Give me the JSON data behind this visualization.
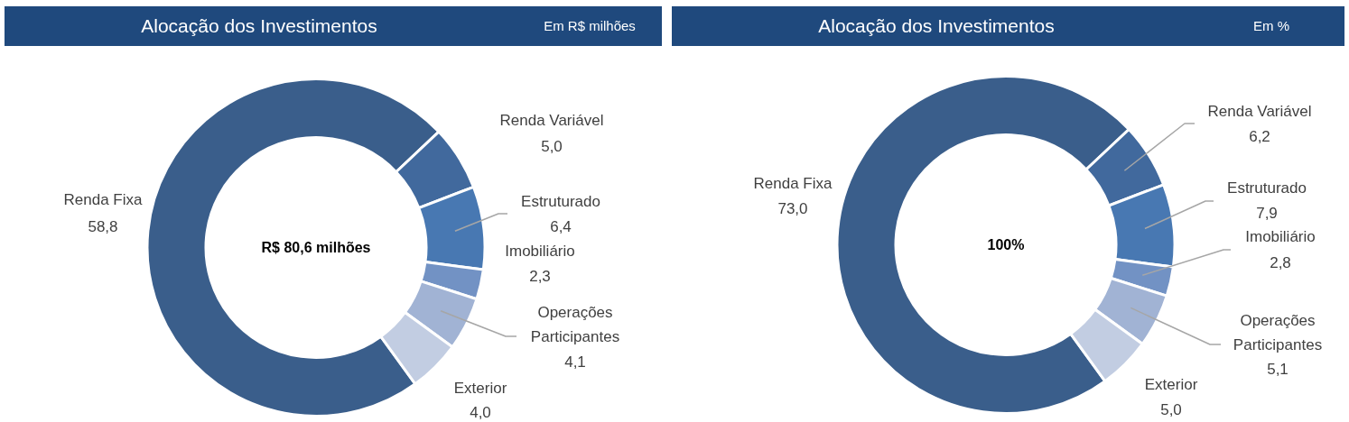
{
  "chart_data": [
    {
      "type": "donut",
      "title": "Alocação dos Investimentos",
      "subtitle": "Em R$ milhões",
      "categories": [
        "Renda Fixa",
        "Renda Variável",
        "Estruturado",
        "Imobiliário",
        "Operações Participantes",
        "Exterior"
      ],
      "values": [
        58.8,
        5.0,
        6.4,
        2.3,
        4.1,
        4.0
      ],
      "colors": [
        "#3a5e8b",
        "#41699d",
        "#4878b2",
        "#7292c4",
        "#a1b3d4",
        "#c2cde2"
      ],
      "value_labels": [
        "58,8",
        "5,0",
        "6,4",
        "2,3",
        "4,1",
        "4,0"
      ],
      "annotations": [
        "R$ 80,6 milhões"
      ]
    },
    {
      "type": "donut",
      "title": "Alocação dos Investimentos",
      "subtitle": "Em %",
      "categories": [
        "Renda Fixa",
        "Renda Variável",
        "Estruturado",
        "Imobiliário",
        "Operações Participantes",
        "Exterior"
      ],
      "values": [
        73.0,
        6.2,
        7.9,
        2.8,
        5.1,
        5.0
      ],
      "colors": [
        "#3a5e8b",
        "#41699d",
        "#4878b2",
        "#7292c4",
        "#a1b3d4",
        "#c2cde2"
      ],
      "value_labels": [
        "73,0",
        "6,2",
        "7,9",
        "2,8",
        "5,1",
        "5,0"
      ],
      "annotations": [
        "100%"
      ]
    }
  ]
}
